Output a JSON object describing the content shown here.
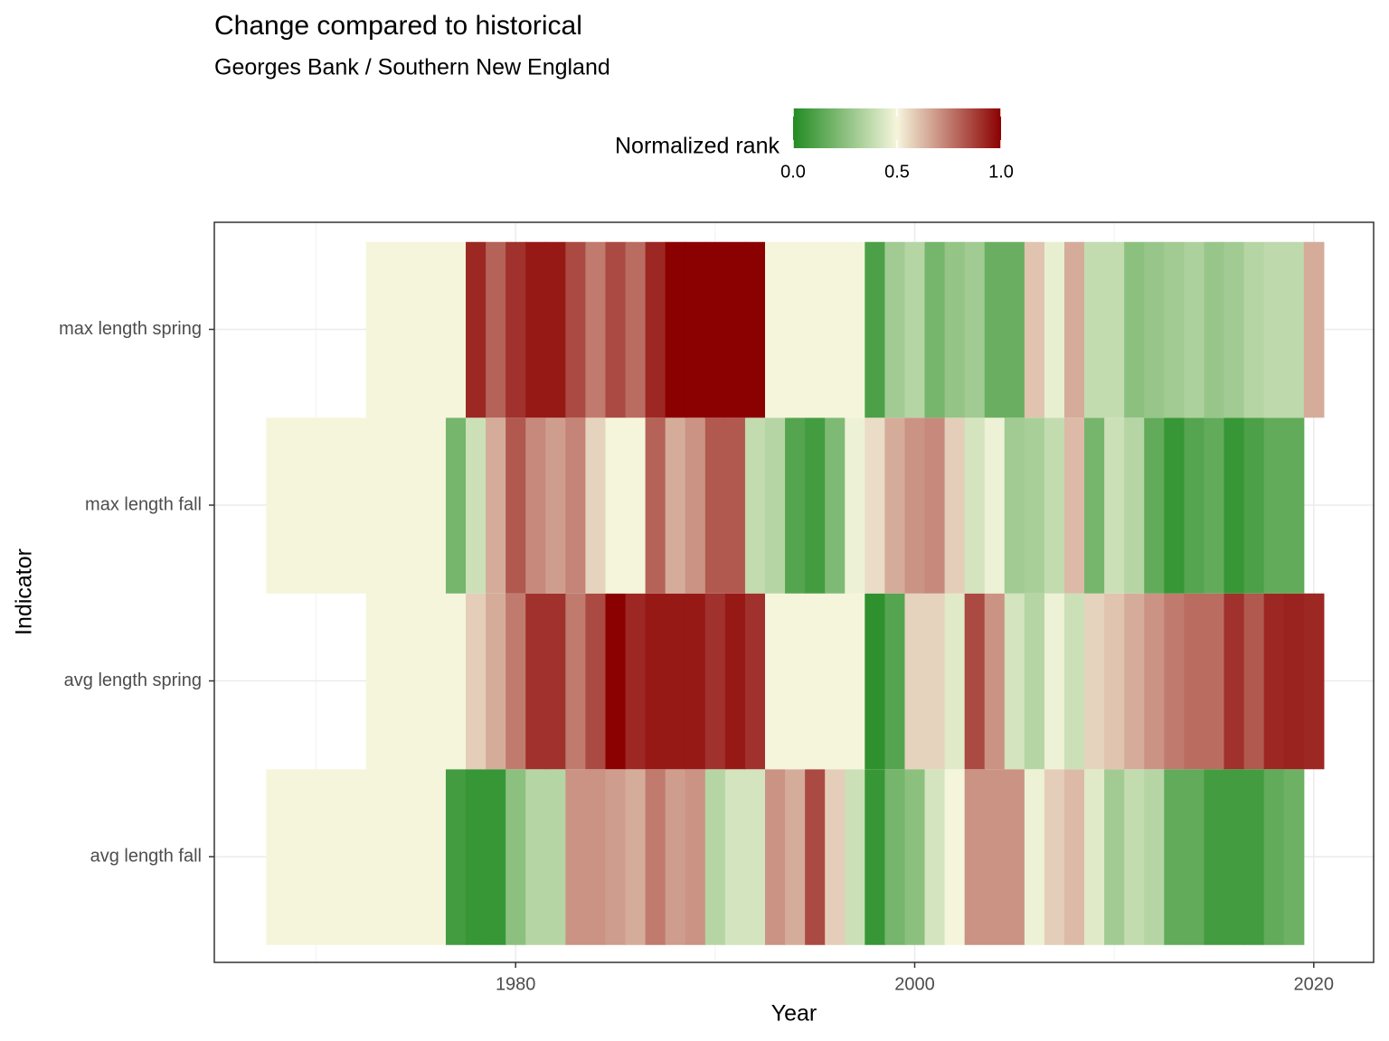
{
  "chart_data": {
    "type": "heatmap",
    "title": "Change compared to historical",
    "subtitle": "Georges Bank / Southern New England",
    "xlabel": "Year",
    "ylabel": "Indicator",
    "legend_title": "Normalized rank",
    "x": [
      1968,
      1969,
      1970,
      1971,
      1972,
      1973,
      1974,
      1975,
      1976,
      1977,
      1978,
      1979,
      1980,
      1981,
      1982,
      1983,
      1984,
      1985,
      1986,
      1987,
      1988,
      1989,
      1990,
      1991,
      1992,
      1993,
      1994,
      1995,
      1996,
      1997,
      1998,
      1999,
      2000,
      2001,
      2002,
      2003,
      2004,
      2005,
      2006,
      2007,
      2008,
      2009,
      2010,
      2011,
      2012,
      2013,
      2014,
      2015,
      2016,
      2017,
      2018,
      2019,
      2020
    ],
    "series": [
      {
        "name": "avg length fall",
        "values": [
          0.5,
          0.5,
          0.5,
          0.5,
          0.5,
          0.5,
          0.5,
          0.5,
          0.5,
          0.08,
          0.05,
          0.05,
          0.25,
          0.35,
          0.35,
          0.7,
          0.7,
          0.68,
          0.65,
          0.75,
          0.68,
          0.7,
          0.35,
          0.42,
          0.42,
          0.7,
          0.65,
          0.85,
          0.58,
          0.4,
          0.05,
          0.2,
          0.25,
          0.42,
          0.5,
          0.7,
          0.7,
          0.7,
          0.48,
          0.58,
          0.62,
          0.45,
          0.3,
          0.38,
          0.35,
          0.15,
          0.15,
          0.08,
          0.08,
          0.08,
          0.15,
          0.18,
          null
        ]
      },
      {
        "name": "avg length spring",
        "values": [
          null,
          null,
          null,
          null,
          null,
          0.5,
          0.5,
          0.5,
          0.5,
          0.5,
          0.58,
          0.65,
          0.75,
          0.9,
          0.9,
          0.75,
          0.85,
          1.0,
          0.92,
          0.95,
          0.95,
          0.95,
          0.9,
          0.95,
          0.9,
          0.5,
          0.5,
          0.5,
          0.5,
          0.5,
          0.03,
          0.12,
          0.57,
          0.57,
          0.45,
          0.85,
          0.7,
          0.42,
          0.35,
          0.48,
          0.4,
          0.57,
          0.6,
          0.65,
          0.7,
          0.75,
          0.78,
          0.78,
          0.9,
          0.82,
          0.92,
          0.93,
          0.92
        ]
      },
      {
        "name": "max length fall",
        "values": [
          0.5,
          0.5,
          0.5,
          0.5,
          0.5,
          0.5,
          0.5,
          0.5,
          0.5,
          0.2,
          0.4,
          0.65,
          0.82,
          0.72,
          0.68,
          0.73,
          0.57,
          0.5,
          0.5,
          0.8,
          0.65,
          0.7,
          0.82,
          0.82,
          0.38,
          0.35,
          0.12,
          0.08,
          0.22,
          0.48,
          0.55,
          0.65,
          0.7,
          0.72,
          0.58,
          0.42,
          0.48,
          0.3,
          0.32,
          0.38,
          0.62,
          0.2,
          0.4,
          0.35,
          0.15,
          0.05,
          0.12,
          0.15,
          0.05,
          0.1,
          0.15,
          0.15,
          null
        ]
      },
      {
        "name": "max length spring",
        "values": [
          null,
          null,
          null,
          null,
          null,
          0.5,
          0.5,
          0.5,
          0.5,
          0.5,
          0.92,
          0.8,
          0.9,
          0.95,
          0.95,
          0.85,
          0.75,
          0.85,
          0.78,
          0.92,
          1,
          1,
          1,
          1,
          1,
          0.5,
          0.5,
          0.5,
          0.5,
          0.5,
          0.1,
          0.3,
          0.35,
          0.2,
          0.27,
          0.3,
          0.17,
          0.17,
          0.6,
          0.47,
          0.65,
          0.38,
          0.38,
          0.25,
          0.28,
          0.3,
          0.33,
          0.28,
          0.3,
          0.35,
          0.37,
          0.37,
          0.65
        ]
      }
    ],
    "xlim": [
      1964.9,
      2023
    ],
    "xticks": [
      1980,
      2000,
      2020
    ],
    "xminor": [
      1970,
      1990,
      2010
    ],
    "colorscale": [
      "#228B22",
      "#F5F5DC",
      "#8B0000"
    ],
    "clim": [
      0,
      1
    ],
    "cticks": [
      {
        "value": 0,
        "label": "0.0"
      },
      {
        "value": 0.5,
        "label": "0.5"
      },
      {
        "value": 1,
        "label": "1.0"
      }
    ],
    "grid": true,
    "legend_position": "top"
  }
}
